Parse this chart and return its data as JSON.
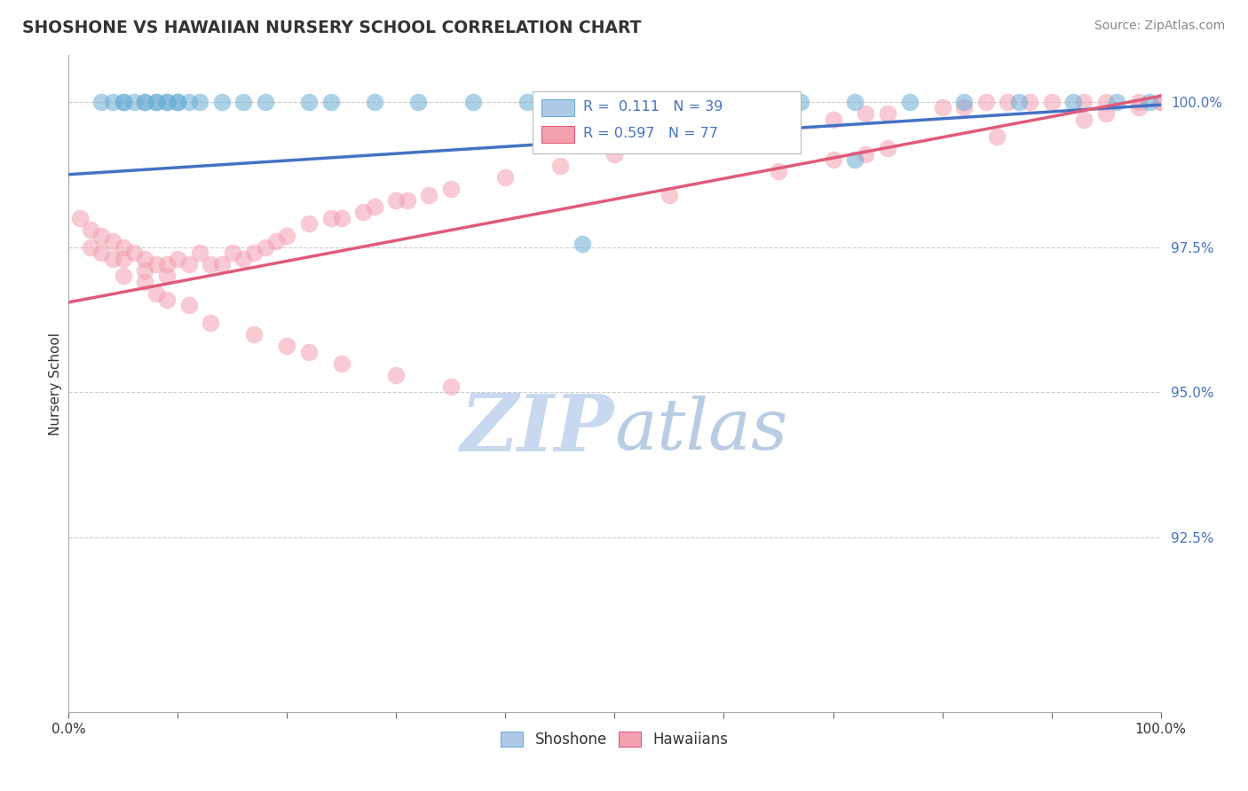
{
  "title": "SHOSHONE VS HAWAIIAN NURSERY SCHOOL CORRELATION CHART",
  "source": "Source: ZipAtlas.com",
  "ylabel": "Nursery School",
  "xlabel": "",
  "xlim": [
    0.0,
    1.0
  ],
  "ylim": [
    0.895,
    1.008
  ],
  "yticks": [
    0.925,
    0.95,
    0.975,
    1.0
  ],
  "ytick_labels": [
    "92.5%",
    "95.0%",
    "97.5%",
    "100.0%"
  ],
  "xticks": [
    0.0,
    0.1,
    0.2,
    0.3,
    0.4,
    0.5,
    0.6,
    0.7,
    0.8,
    0.9,
    1.0
  ],
  "xtick_labels": [
    "0.0%",
    "",
    "",
    "",
    "",
    "",
    "",
    "",
    "",
    "",
    "100.0%"
  ],
  "legend_r_shoshone": "0.111",
  "legend_n_shoshone": "39",
  "legend_r_hawaiian": "0.597",
  "legend_n_hawaiian": "77",
  "shoshone_color": "#6baed6",
  "hawaiian_color": "#f4a0b0",
  "trend_shoshone_color": "#4472c4",
  "trend_hawaiian_color": "#e05a7a",
  "background_color": "#ffffff",
  "watermark_color": "#c8d8ee",
  "shoshone_trend_y0": 0.9875,
  "shoshone_trend_y1": 0.9995,
  "hawaiian_trend_y0": 0.9655,
  "hawaiian_trend_y1": 1.001,
  "shoshone_points_x": [
    0.03,
    0.04,
    0.05,
    0.05,
    0.06,
    0.07,
    0.07,
    0.08,
    0.08,
    0.09,
    0.09,
    0.1,
    0.1,
    0.11,
    0.12,
    0.14,
    0.16,
    0.18,
    0.22,
    0.24,
    0.28,
    0.32,
    0.37,
    0.42,
    0.47,
    0.53,
    0.58,
    0.63,
    0.67,
    0.72,
    0.77,
    0.82,
    0.87,
    0.92,
    0.96,
    0.99,
    0.47,
    0.63,
    0.72
  ],
  "shoshone_points_y": [
    1.0,
    1.0,
    1.0,
    1.0,
    1.0,
    1.0,
    1.0,
    1.0,
    1.0,
    1.0,
    1.0,
    1.0,
    1.0,
    1.0,
    1.0,
    1.0,
    1.0,
    1.0,
    1.0,
    1.0,
    1.0,
    1.0,
    1.0,
    1.0,
    1.0,
    1.0,
    1.0,
    1.0,
    1.0,
    1.0,
    1.0,
    1.0,
    1.0,
    1.0,
    1.0,
    1.0,
    0.9755,
    0.997,
    0.99
  ],
  "hawaiian_points_x": [
    0.01,
    0.02,
    0.02,
    0.03,
    0.03,
    0.04,
    0.04,
    0.05,
    0.05,
    0.05,
    0.06,
    0.07,
    0.07,
    0.08,
    0.09,
    0.09,
    0.1,
    0.11,
    0.12,
    0.13,
    0.14,
    0.15,
    0.16,
    0.17,
    0.18,
    0.19,
    0.2,
    0.22,
    0.24,
    0.25,
    0.27,
    0.28,
    0.3,
    0.31,
    0.33,
    0.35,
    0.4,
    0.45,
    0.5,
    0.55,
    0.58,
    0.6,
    0.65,
    0.7,
    0.73,
    0.75,
    0.8,
    0.82,
    0.84,
    0.86,
    0.88,
    0.9,
    0.93,
    0.95,
    0.98,
    1.0,
    0.08,
    0.09,
    0.11,
    0.13,
    0.17,
    0.2,
    0.22,
    0.25,
    0.3,
    0.35,
    0.55,
    0.65,
    0.7,
    0.73,
    0.75,
    0.85,
    0.93,
    0.95,
    0.98,
    1.0,
    0.07
  ],
  "hawaiian_points_y": [
    0.98,
    0.978,
    0.975,
    0.977,
    0.974,
    0.976,
    0.973,
    0.975,
    0.973,
    0.97,
    0.974,
    0.973,
    0.971,
    0.972,
    0.972,
    0.97,
    0.973,
    0.972,
    0.974,
    0.972,
    0.972,
    0.974,
    0.973,
    0.974,
    0.975,
    0.976,
    0.977,
    0.979,
    0.98,
    0.98,
    0.981,
    0.982,
    0.983,
    0.983,
    0.984,
    0.985,
    0.987,
    0.989,
    0.991,
    0.993,
    0.994,
    0.994,
    0.996,
    0.997,
    0.998,
    0.998,
    0.999,
    0.999,
    1.0,
    1.0,
    1.0,
    1.0,
    1.0,
    1.0,
    1.0,
    1.0,
    0.967,
    0.966,
    0.965,
    0.962,
    0.96,
    0.958,
    0.957,
    0.955,
    0.953,
    0.951,
    0.984,
    0.988,
    0.99,
    0.991,
    0.992,
    0.994,
    0.997,
    0.998,
    0.999,
    1.0,
    0.969
  ]
}
